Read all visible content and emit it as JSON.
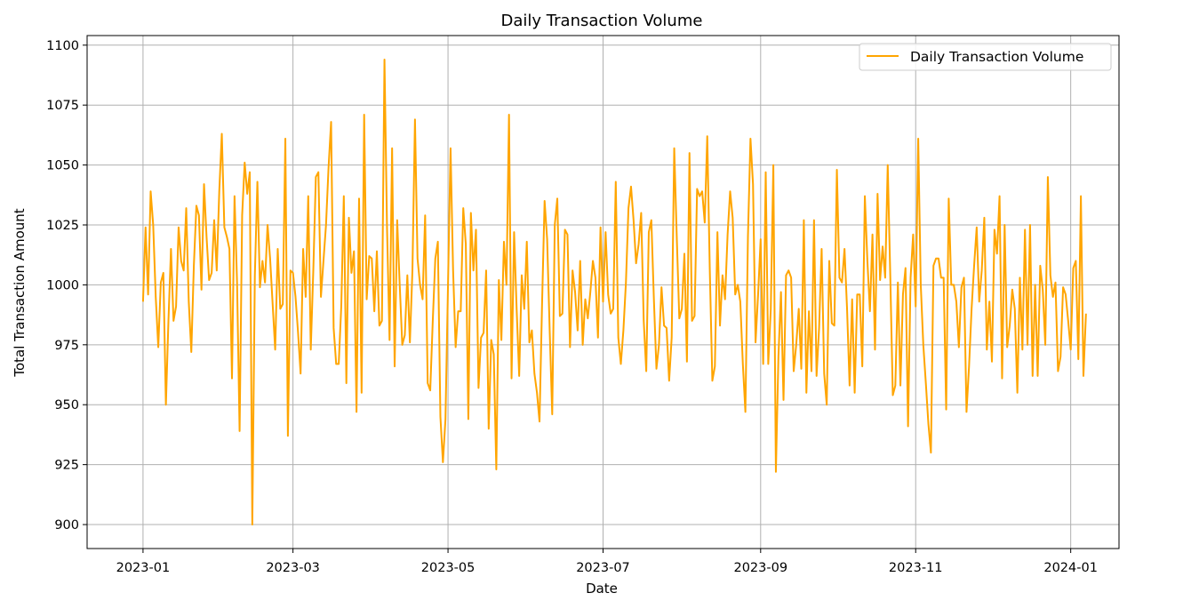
{
  "chart_data": {
    "type": "line",
    "title": "Daily Transaction Volume",
    "xlabel": "Date",
    "ylabel": "Total Transaction Amount",
    "x_start": "2023-01-01",
    "x_end": "2023-12-31",
    "xlim": [
      "2022-12-10",
      "2024-01-20"
    ],
    "ylim": [
      890,
      1104
    ],
    "x_ticks": [
      "2023-01",
      "2023-03",
      "2023-05",
      "2023-07",
      "2023-09",
      "2023-11",
      "2024-01"
    ],
    "y_ticks": [
      900,
      925,
      950,
      975,
      1000,
      1025,
      1050,
      1075,
      1100
    ],
    "grid": true,
    "legend_position": "upper right",
    "series": [
      {
        "name": "Daily Transaction Volume",
        "color": "#FFA500",
        "values": [
          993,
          1024,
          996,
          1039,
          1025,
          995,
          974,
          1001,
          1005,
          950,
          985,
          1015,
          985,
          991,
          1024,
          1010,
          1006,
          1032,
          993,
          972,
          1008,
          1033,
          1029,
          998,
          1042,
          1020,
          1002,
          1005,
          1027,
          1006,
          1039,
          1063,
          1024,
          1020,
          1015,
          961,
          1037,
          1001,
          939,
          1029,
          1051,
          1038,
          1047,
          900,
          1004,
          1043,
          999,
          1010,
          1001,
          1025,
          1011,
          992,
          973,
          1015,
          990,
          992,
          1061,
          937,
          1006,
          1005,
          995,
          980,
          963,
          1015,
          995,
          1037,
          973,
          1006,
          1045,
          1047,
          995,
          1010,
          1025,
          1049,
          1068,
          982,
          967,
          967,
          991,
          1037,
          959,
          1028,
          1005,
          1014,
          947,
          1036,
          955,
          1071,
          994,
          1012,
          1011,
          989,
          1014,
          983,
          985,
          1094,
          1024,
          977,
          1057,
          966,
          1027,
          1000,
          975,
          979,
          1004,
          976,
          1006,
          1069,
          1011,
          1000,
          994,
          1029,
          959,
          956,
          985,
          1011,
          1018,
          945,
          926,
          944,
          1000,
          1057,
          1006,
          974,
          989,
          989,
          1032,
          1017,
          944,
          1030,
          1006,
          1023,
          957,
          978,
          980,
          1006,
          940,
          977,
          971,
          923,
          1002,
          977,
          1018,
          1000,
          1071,
          961,
          1022,
          990,
          962,
          1004,
          990,
          1018,
          976,
          981,
          963,
          955,
          943,
          992,
          1035,
          1019,
          981,
          946,
          1025,
          1036,
          987,
          988,
          1023,
          1021,
          974,
          1006,
          997,
          981,
          1010,
          975,
          994,
          986,
          997,
          1010,
          1003,
          978,
          1024,
          993,
          1022,
          996,
          988,
          990,
          1043,
          978,
          967,
          981,
          1001,
          1032,
          1041,
          1027,
          1009,
          1017,
          1030,
          985,
          964,
          1022,
          1027,
          994,
          965,
          975,
          999,
          983,
          982,
          960,
          978,
          1057,
          1020,
          986,
          990,
          1013,
          968,
          1055,
          985,
          987,
          1040,
          1037,
          1039,
          1026,
          1062,
          1006,
          960,
          966,
          1022,
          983,
          1004,
          994,
          1021,
          1039,
          1028,
          996,
          1000,
          993,
          967,
          947,
          1020,
          1061,
          1042,
          976,
          996,
          1019,
          967,
          1047,
          967,
          990,
          1050,
          922,
          970,
          997,
          952,
          1004,
          1006,
          1003,
          964,
          975,
          990,
          965,
          1027,
          955,
          989,
          964,
          1027,
          962,
          982,
          1015,
          963,
          950,
          1010,
          984,
          983,
          1048,
          1003,
          1001,
          1015,
          990,
          958,
          994,
          955,
          996,
          996,
          966,
          1037,
          1010,
          989,
          1021,
          973,
          1038,
          1002,
          1016,
          1003,
          1050,
          1004,
          954,
          958,
          1001,
          958,
          996,
          1007,
          941,
          1003,
          1021,
          991,
          1061,
          1000,
          975,
          959,
          942,
          930,
          1008,
          1011,
          1011,
          1003,
          1003,
          948,
          1036,
          1000,
          1000,
          993,
          974,
          999,
          1003,
          947,
          966,
          990,
          1008,
          1024,
          993,
          1006,
          1028,
          973,
          993,
          968,
          1023,
          1013,
          1037,
          961,
          1025,
          974,
          983,
          998,
          990,
          955,
          1003,
          973,
          1023,
          975,
          1025,
          962,
          1000,
          962,
          1008,
          998,
          975,
          1045,
          1004,
          995,
          1001,
          964,
          970,
          999,
          996,
          985,
          973,
          1007,
          1010,
          969,
          1037,
          962,
          988
        ]
      }
    ]
  }
}
